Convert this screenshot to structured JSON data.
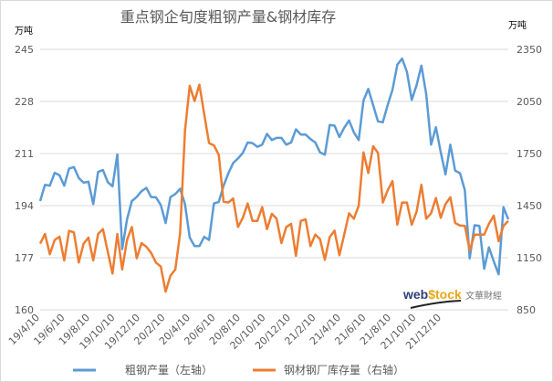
{
  "chart_data": {
    "type": "line",
    "title": "重点钢企旬度粗钢产量&钢材库存",
    "y_unit_left": "万吨",
    "y_unit_right": "万吨",
    "ylim_left": [
      160,
      245
    ],
    "yticks_left": [
      160,
      177,
      194,
      211,
      228,
      245
    ],
    "ylim_right": [
      850,
      2350
    ],
    "yticks_right": [
      850,
      1150,
      1450,
      1750,
      2050,
      2350
    ],
    "grid": true,
    "legend_position": "bottom",
    "x_tick_labels": [
      "19/4/10",
      "19/6/10",
      "19/8/10",
      "19/10/10",
      "19/12/10",
      "20/2/10",
      "20/4/10",
      "20/6/10",
      "20/8/10",
      "20/10/10",
      "20/12/10",
      "21/2/10",
      "21/4/10",
      "21/6/10",
      "21/8/10",
      "21/10/10",
      "21/12/10"
    ],
    "series": [
      {
        "name": "粗钢产量（左轴）",
        "axis": "left",
        "color": "#5b9bd5",
        "values": [
          195.5,
          200.8,
          200.5,
          204.7,
          203.9,
          200.5,
          206.1,
          206.6,
          203,
          201.5,
          201.8,
          194.5,
          205,
          205.6,
          201.7,
          200.3,
          210.7,
          179.8,
          189.5,
          195.5,
          196.8,
          198.7,
          199.8,
          196.8,
          196.7,
          194.2,
          188.3,
          196.8,
          197.8,
          199.5,
          194.5,
          183.6,
          180.8,
          180.8,
          183.8,
          182.8,
          194.7,
          195.2,
          200.5,
          204.6,
          207.9,
          209.4,
          211.2,
          214.6,
          214.4,
          213.2,
          213.9,
          217.4,
          215.4,
          216.1,
          216.1,
          213.9,
          214.6,
          218.9,
          217.2,
          217.2,
          215.7,
          214.6,
          211.4,
          210.6,
          220.3,
          220.1,
          216.4,
          219.4,
          221.8,
          217.9,
          215.4,
          228.3,
          232.1,
          226.8,
          221.5,
          221.2,
          226.8,
          231.8,
          240,
          242,
          237.7,
          228.5,
          233.3,
          239.7,
          230.3,
          213.9,
          219.6,
          211.4,
          204.2,
          213.9,
          205.4,
          204.6,
          199,
          176.8,
          187.6,
          187.4,
          173.4,
          180.4,
          175.8,
          171.6,
          193.5,
          189.5
        ]
      },
      {
        "name": "钢材钢厂库存量（右轴）",
        "axis": "right",
        "color": "#ed7d31",
        "values": [
          1231,
          1287,
          1170,
          1252,
          1271,
          1134,
          1305,
          1296,
          1122,
          1231,
          1266,
          1134,
          1287,
          1315,
          1187,
          1059,
          1287,
          1082,
          1252,
          1327,
          1147,
          1234,
          1213,
          1178,
          1122,
          1099,
          954,
          1047,
          1082,
          1292,
          1880,
          2140,
          2052,
          2147,
          1976,
          1810,
          1797,
          1743,
          1473,
          1468,
          1491,
          1327,
          1380,
          1462,
          1362,
          1362,
          1441,
          1315,
          1403,
          1375,
          1234,
          1327,
          1345,
          1161,
          1362,
          1371,
          1217,
          1283,
          1257,
          1138,
          1269,
          1306,
          1164,
          1283,
          1406,
          1375,
          1450,
          1757,
          1638,
          1792,
          1754,
          1468,
          1538,
          1591,
          1340,
          1468,
          1468,
          1340,
          1415,
          1570,
          1375,
          1406,
          1494,
          1380,
          1459,
          1498,
          1350,
          1336,
          1333,
          1192,
          1283,
          1283,
          1283,
          1345,
          1392,
          1245,
          1333,
          1362
        ]
      }
    ]
  },
  "watermark": {
    "brand": "webstock",
    "brand_cn": "文華財經"
  }
}
